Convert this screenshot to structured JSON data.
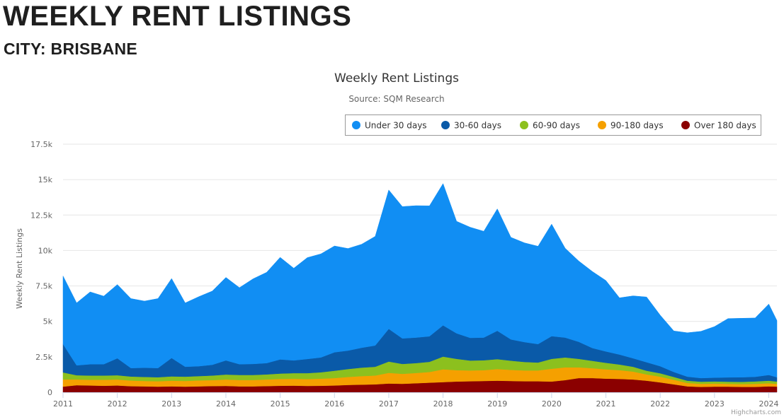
{
  "page": {
    "heading": "WEEKLY RENT LISTINGS",
    "subheading": "CITY: BRISBANE"
  },
  "credits": "Highcharts.com",
  "chart_data": {
    "type": "area",
    "stacked": true,
    "title": "Weekly Rent Listings",
    "subtitle": "Source: SQM Research",
    "ylabel": "Weekly Rent Listings",
    "ylim": [
      0,
      17500
    ],
    "yticks": [
      0,
      2500,
      5000,
      7500,
      10000,
      12500,
      15000,
      17500
    ],
    "ytick_labels": [
      "0",
      "2.5k",
      "5k",
      "7.5k",
      "10k",
      "12.5k",
      "15k",
      "17.5k"
    ],
    "xlim": [
      2011.0,
      2024.15
    ],
    "xticks": [
      2011,
      2012,
      2013,
      2014,
      2015,
      2016,
      2017,
      2018,
      2019,
      2020,
      2021,
      2022,
      2023,
      2024
    ],
    "grid": true,
    "legend_position": "top-right",
    "x": [
      2011.0,
      2011.25,
      2011.5,
      2011.75,
      2012.0,
      2012.25,
      2012.5,
      2012.75,
      2013.0,
      2013.25,
      2013.5,
      2013.75,
      2014.0,
      2014.25,
      2014.5,
      2014.75,
      2015.0,
      2015.25,
      2015.5,
      2015.75,
      2016.0,
      2016.25,
      2016.5,
      2016.75,
      2017.0,
      2017.25,
      2017.5,
      2017.75,
      2018.0,
      2018.25,
      2018.5,
      2018.75,
      2019.0,
      2019.25,
      2019.5,
      2019.75,
      2020.0,
      2020.25,
      2020.5,
      2020.75,
      2021.0,
      2021.25,
      2021.5,
      2021.75,
      2022.0,
      2022.25,
      2022.5,
      2022.75,
      2023.0,
      2023.25,
      2023.5,
      2023.75,
      2024.0,
      2024.15
    ],
    "series": [
      {
        "name": "Over 180 days",
        "color": "#8b0000",
        "values": [
          400,
          500,
          480,
          460,
          480,
          430,
          420,
          400,
          420,
          400,
          420,
          440,
          450,
          420,
          420,
          440,
          460,
          470,
          450,
          460,
          480,
          520,
          540,
          560,
          620,
          600,
          640,
          680,
          720,
          760,
          780,
          800,
          820,
          800,
          780,
          780,
          760,
          860,
          1000,
          1000,
          960,
          940,
          900,
          820,
          700,
          560,
          420,
          380,
          400,
          400,
          380,
          380,
          420,
          400
        ]
      },
      {
        "name": "90-180 days",
        "color": "#f5a000",
        "values": [
          500,
          400,
          400,
          420,
          420,
          400,
          380,
          380,
          400,
          400,
          420,
          420,
          450,
          450,
          450,
          460,
          480,
          480,
          480,
          500,
          520,
          560,
          600,
          620,
          750,
          700,
          720,
          750,
          900,
          800,
          760,
          760,
          820,
          780,
          760,
          760,
          900,
          900,
          760,
          700,
          660,
          620,
          560,
          440,
          400,
          320,
          240,
          220,
          220,
          200,
          200,
          220,
          220,
          200
        ]
      },
      {
        "name": "60-90 days",
        "color": "#8cc01e",
        "values": [
          500,
          300,
          300,
          300,
          300,
          280,
          280,
          280,
          300,
          300,
          300,
          320,
          350,
          350,
          350,
          360,
          380,
          400,
          420,
          450,
          520,
          560,
          600,
          620,
          800,
          700,
          700,
          720,
          900,
          800,
          700,
          700,
          700,
          650,
          600,
          560,
          700,
          700,
          600,
          520,
          460,
          400,
          340,
          260,
          240,
          200,
          160,
          150,
          150,
          150,
          160,
          170,
          180,
          160
        ]
      },
      {
        "name": "30-60 days",
        "color": "#0a5aa8",
        "values": [
          2000,
          700,
          800,
          800,
          1200,
          600,
          650,
          650,
          1300,
          700,
          700,
          760,
          1000,
          760,
          780,
          800,
          1000,
          900,
          1000,
          1050,
          1300,
          1300,
          1400,
          1500,
          2300,
          1800,
          1800,
          1800,
          2200,
          1800,
          1600,
          1600,
          2000,
          1500,
          1400,
          1300,
          1600,
          1400,
          1200,
          900,
          800,
          700,
          600,
          600,
          500,
          350,
          280,
          250,
          260,
          300,
          320,
          320,
          400,
          300
        ]
      },
      {
        "name": "Under 30 days",
        "color": "#118ef3",
        "values": [
          4800,
          4400,
          5100,
          4800,
          5200,
          4900,
          4700,
          4900,
          5600,
          4500,
          4900,
          5200,
          5850,
          5400,
          6000,
          6400,
          7200,
          6500,
          7150,
          7300,
          7500,
          7200,
          7300,
          7700,
          9800,
          9300,
          9300,
          9200,
          10000,
          7900,
          7800,
          7500,
          8600,
          7200,
          7000,
          6900,
          7900,
          6300,
          5700,
          5400,
          5000,
          4000,
          4400,
          4600,
          3600,
          2900,
          3100,
          3300,
          3600,
          4150,
          4160,
          4150,
          5000,
          4000
        ]
      }
    ]
  }
}
